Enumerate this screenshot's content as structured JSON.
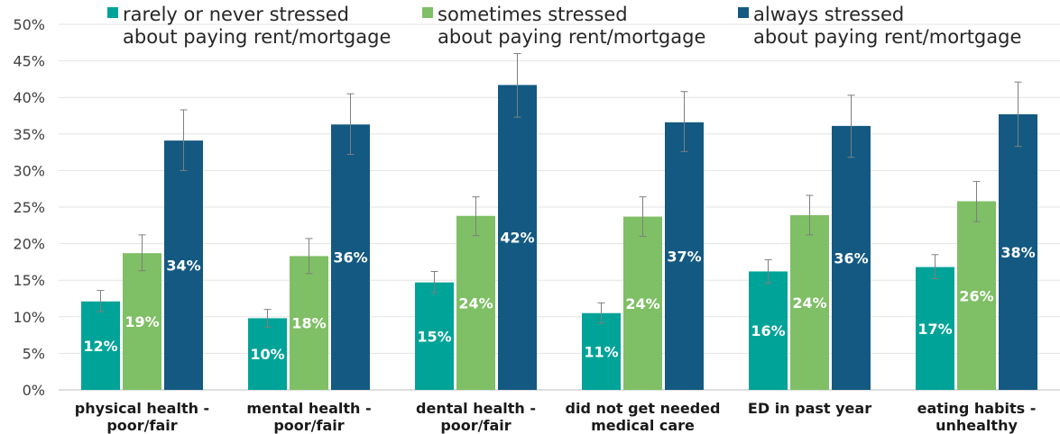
{
  "chart_data": {
    "type": "bar",
    "categories": [
      [
        "physical health -",
        "poor/fair"
      ],
      [
        "mental health -",
        "poor/fair"
      ],
      [
        "dental health -",
        "poor/fair"
      ],
      [
        "did not get needed",
        "medical care"
      ],
      [
        "ED in past year"
      ],
      [
        "eating habits -",
        "unhealthy"
      ]
    ],
    "ylim": [
      0,
      50
    ],
    "yticks": [
      "0%",
      "5%",
      "10%",
      "15%",
      "20%",
      "25%",
      "30%",
      "35%",
      "40%",
      "45%",
      "50%"
    ],
    "grid": true,
    "legend_position": "top",
    "series": [
      {
        "name": [
          "rarely or never stressed",
          "about paying rent/mortgage"
        ],
        "color": "#00A398",
        "values": [
          12.1,
          9.8,
          14.7,
          10.5,
          16.2,
          16.8
        ],
        "labels": [
          "12%",
          "10%",
          "15%",
          "11%",
          "16%",
          "17%"
        ],
        "err_low": [
          10.7,
          8.6,
          13.3,
          9.1,
          14.6,
          15.2
        ],
        "err_high": [
          13.6,
          11.0,
          16.2,
          11.9,
          17.8,
          18.5
        ]
      },
      {
        "name": [
          "sometimes stressed",
          "about paying rent/mortgage"
        ],
        "color": "#7FBF65",
        "values": [
          18.7,
          18.3,
          23.8,
          23.7,
          23.9,
          25.8
        ],
        "labels": [
          "19%",
          "18%",
          "24%",
          "24%",
          "24%",
          "26%"
        ],
        "err_low": [
          16.3,
          15.9,
          21.1,
          21.0,
          21.2,
          23.0
        ],
        "err_high": [
          21.2,
          20.7,
          26.4,
          26.4,
          26.6,
          28.5
        ]
      },
      {
        "name": [
          "always stressed",
          "about paying rent/mortgage"
        ],
        "color": "#135982",
        "values": [
          34.1,
          36.3,
          41.7,
          36.6,
          36.1,
          37.7
        ],
        "labels": [
          "34%",
          "36%",
          "42%",
          "37%",
          "36%",
          "38%"
        ],
        "err_low": [
          30.0,
          32.2,
          37.3,
          32.6,
          31.8,
          33.3
        ],
        "err_high": [
          38.3,
          40.5,
          46.0,
          40.8,
          40.3,
          42.1
        ]
      }
    ]
  }
}
